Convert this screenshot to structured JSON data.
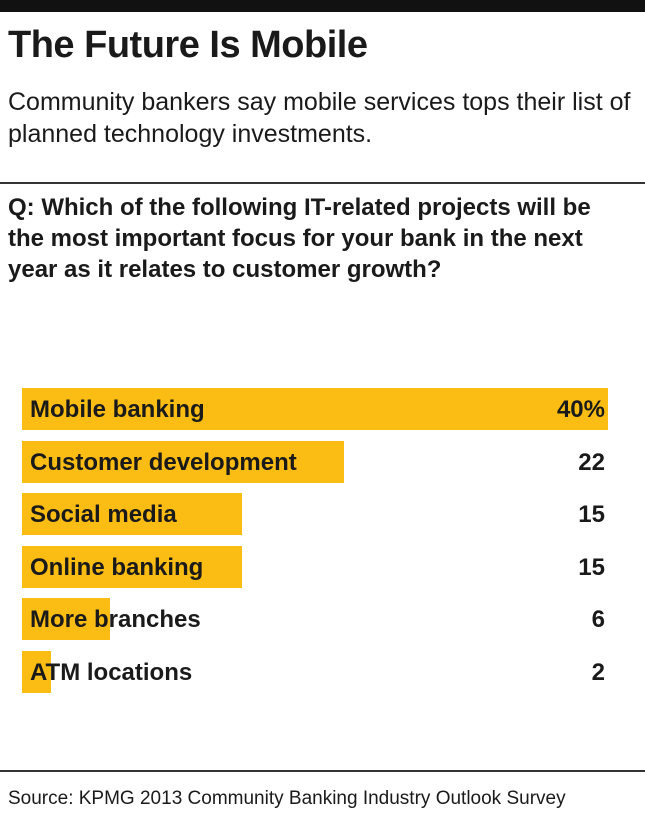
{
  "header": {
    "title": "The Future Is Mobile",
    "subtitle": "Community bankers say mobile services tops their list of planned technology investments."
  },
  "question": "Q: Which of the following IT-related projects will be the most important focus for your bank in the next year as it relates to customer growth?",
  "source": "Source: KPMG 2013 Community Banking Industry Outlook Survey",
  "colors": {
    "bar": "#fbbd13",
    "rule": "#111111"
  },
  "chart_data": {
    "type": "bar",
    "orientation": "horizontal",
    "categories": [
      "Mobile banking",
      "Customer development",
      "Social media",
      "Online banking",
      "More branches",
      "ATM locations"
    ],
    "values": [
      40,
      22,
      15,
      15,
      6,
      2
    ],
    "value_labels": [
      "40%",
      "22",
      "15",
      "15",
      "6",
      "2"
    ],
    "xlim": [
      0,
      40
    ],
    "grid": false
  }
}
